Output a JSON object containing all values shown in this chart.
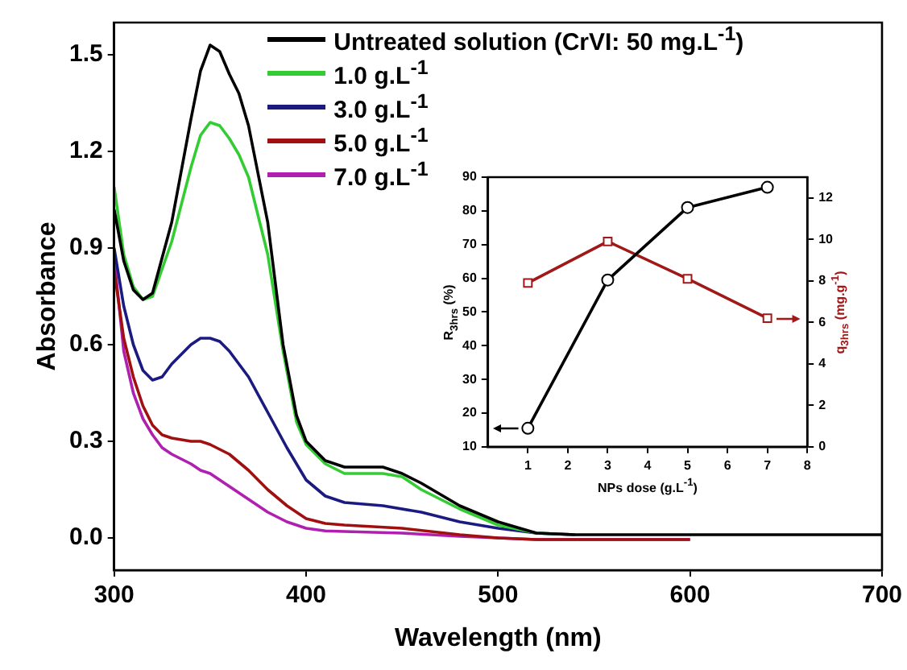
{
  "chart_data": [
    {
      "type": "line",
      "xlabel": "Wavelength (nm)",
      "ylabel": "Absorbance",
      "xlim": [
        300,
        700
      ],
      "xticks": [
        300,
        400,
        500,
        600,
        700
      ],
      "ylim": [
        -0.1,
        1.6
      ],
      "yticks": [
        {
          "value": 0,
          "label": "0.0"
        },
        {
          "value": 0.3,
          "label": "0.3"
        },
        {
          "value": 0.6,
          "label": "0.6"
        },
        {
          "value": 0.9,
          "label": "0.9"
        },
        {
          "value": 1.2,
          "label": "1.2"
        },
        {
          "value": 1.5,
          "label": "1.5"
        }
      ],
      "grid": false,
      "legend": "top",
      "marker": "none",
      "line_style": "solid",
      "series": [
        {
          "name": "Untreated solution (CrVI: 50 mg.L$^{-1}$)",
          "color": "#000000",
          "x": [
            300,
            305,
            310,
            315,
            320,
            330,
            340,
            345,
            350,
            355,
            360,
            365,
            370,
            380,
            388,
            395,
            400,
            410,
            420,
            430,
            440,
            450,
            460,
            480,
            500,
            520,
            540,
            600,
            700
          ],
          "values": [
            1.02,
            0.86,
            0.77,
            0.74,
            0.76,
            0.98,
            1.3,
            1.45,
            1.53,
            1.51,
            1.44,
            1.38,
            1.28,
            0.98,
            0.6,
            0.38,
            0.3,
            0.24,
            0.22,
            0.22,
            0.22,
            0.2,
            0.17,
            0.1,
            0.05,
            0.015,
            0.01,
            0.01,
            0.01
          ]
        },
        {
          "name": "1.0 g.L$^{-1}$",
          "color": "#33cc33",
          "x": [
            300,
            305,
            310,
            315,
            320,
            330,
            340,
            345,
            350,
            355,
            360,
            365,
            370,
            380,
            388,
            395,
            400,
            410,
            420,
            430,
            440,
            450,
            460,
            480,
            500,
            520,
            540
          ],
          "values": [
            1.09,
            0.88,
            0.78,
            0.74,
            0.75,
            0.92,
            1.15,
            1.25,
            1.29,
            1.28,
            1.24,
            1.19,
            1.12,
            0.88,
            0.58,
            0.36,
            0.29,
            0.23,
            0.2,
            0.2,
            0.2,
            0.19,
            0.15,
            0.09,
            0.04,
            0.015,
            0.01
          ]
        },
        {
          "name": "3.0 g.L$^{-1}$",
          "color": "#1a1a80",
          "x": [
            300,
            305,
            310,
            315,
            320,
            325,
            330,
            340,
            345,
            350,
            355,
            360,
            370,
            380,
            390,
            400,
            410,
            420,
            440,
            460,
            480,
            500,
            520,
            540
          ],
          "values": [
            0.9,
            0.72,
            0.6,
            0.52,
            0.49,
            0.5,
            0.54,
            0.6,
            0.62,
            0.62,
            0.61,
            0.58,
            0.5,
            0.39,
            0.28,
            0.18,
            0.13,
            0.11,
            0.1,
            0.08,
            0.05,
            0.03,
            0.015,
            0.01
          ]
        },
        {
          "name": "5.0 g.L$^{-1}$",
          "color": "#a01010",
          "x": [
            300,
            305,
            310,
            315,
            320,
            325,
            330,
            340,
            345,
            350,
            360,
            370,
            380,
            390,
            400,
            410,
            420,
            450,
            480,
            500,
            520,
            600
          ],
          "values": [
            0.83,
            0.62,
            0.5,
            0.41,
            0.35,
            0.32,
            0.31,
            0.3,
            0.3,
            0.29,
            0.26,
            0.21,
            0.15,
            0.1,
            0.06,
            0.045,
            0.04,
            0.03,
            0.01,
            0.0,
            -0.005,
            -0.005
          ]
        },
        {
          "name": "7.0 g.L$^{-1}$",
          "color": "#b020b0",
          "x": [
            300,
            305,
            310,
            315,
            320,
            325,
            330,
            340,
            345,
            350,
            360,
            370,
            380,
            390,
            400,
            410,
            420,
            450,
            480,
            500,
            520,
            600
          ],
          "values": [
            0.87,
            0.58,
            0.45,
            0.37,
            0.32,
            0.28,
            0.26,
            0.23,
            0.21,
            0.2,
            0.16,
            0.12,
            0.08,
            0.05,
            0.03,
            0.022,
            0.02,
            0.015,
            0.005,
            0.0,
            -0.005,
            -0.005
          ]
        }
      ]
    },
    {
      "type": "line",
      "xlabel": "NPs dose (g.L$^{-1}$)",
      "ylabel": "R$_{3hrs}$ (%)",
      "y2label": "q$_{3hrs}$ (mg.g$^{-1}$)",
      "xlim": [
        0,
        8
      ],
      "xticks": [
        1,
        2,
        3,
        4,
        5,
        6,
        7,
        8
      ],
      "ylim": [
        10,
        90
      ],
      "yticks": [
        10,
        20,
        30,
        40,
        50,
        60,
        70,
        80,
        90
      ],
      "y2lim": [
        0,
        13
      ],
      "y2ticks": [
        0,
        2,
        4,
        6,
        8,
        10,
        12
      ],
      "grid": false,
      "legend": false,
      "line_style": "solid",
      "series": [
        {
          "color": "#000000",
          "marker": "circle",
          "x": [
            1,
            3,
            5,
            7
          ],
          "values": [
            15.5,
            59.5,
            81,
            87
          ]
        },
        {
          "color": "#a01818",
          "marker": "square",
          "axis": "y2",
          "x": [
            1,
            3,
            5,
            7
          ],
          "values": [
            7.9,
            9.9,
            8.1,
            6.2
          ]
        }
      ]
    }
  ]
}
